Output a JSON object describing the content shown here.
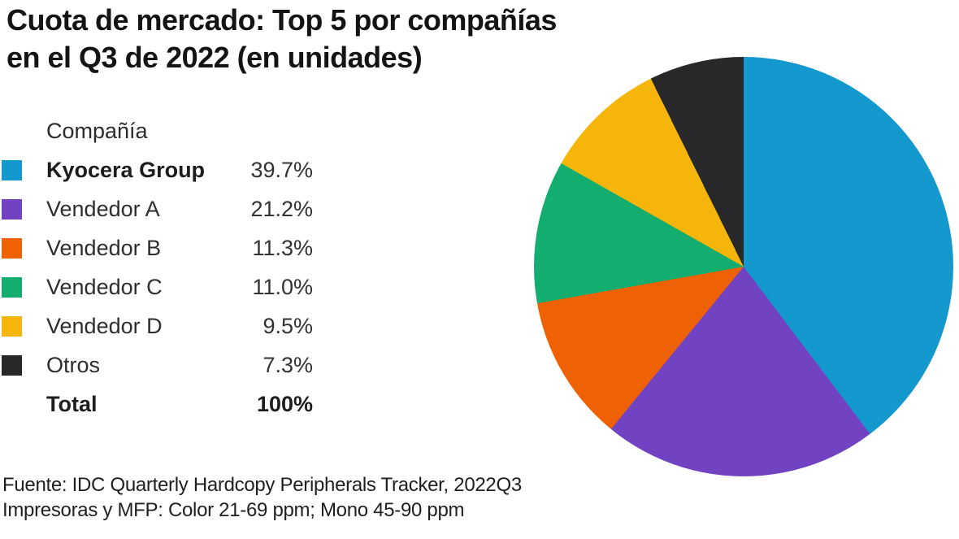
{
  "title": {
    "line1": "Cuota de mercado: Top 5 por compañías",
    "line2": "en el Q3 de 2022 (en unidades)"
  },
  "legend": {
    "header": "Compañía",
    "rows": [
      {
        "label": "Kyocera Group",
        "value": "39.7%",
        "color": "#1499CE"
      },
      {
        "label": "Vendedor A",
        "value": "21.2%",
        "color": "#7142C1"
      },
      {
        "label": "Vendedor B",
        "value": "11.3%",
        "color": "#EE6105"
      },
      {
        "label": "Vendedor C",
        "value": "11.0%",
        "color": "#12AD6F"
      },
      {
        "label": "Vendedor D",
        "value": "9.5%",
        "color": "#F5B50A"
      },
      {
        "label": "Otros",
        "value": "7.3%",
        "color": "#28282A"
      }
    ],
    "total": {
      "label": "Total",
      "value": "100%"
    }
  },
  "footer": {
    "line1": "Fuente: IDC Quarterly Hardcopy Peripherals Tracker, 2022Q3",
    "line2": "Impresoras y MFP: Color 21-69 ppm; Mono 45-90 ppm"
  },
  "chart_data": {
    "type": "pie",
    "title": "Cuota de mercado: Top 5 por compañías en el Q3 de 2022 (en unidades)",
    "categories": [
      "Kyocera Group",
      "Vendedor A",
      "Vendedor B",
      "Vendedor C",
      "Vendedor D",
      "Otros"
    ],
    "values": [
      39.7,
      21.2,
      11.3,
      11.0,
      9.5,
      7.3
    ],
    "colors": [
      "#1499CE",
      "#7142C1",
      "#EE6105",
      "#12AD6F",
      "#F5B50A",
      "#28282A"
    ],
    "value_labels": [
      "39.7%",
      "21.2%",
      "11.3%",
      "11.0%",
      "9.5%",
      "7.3%"
    ],
    "total_label": "Total",
    "total_value": "100%",
    "start_angle_deg": 0,
    "direction": "clockwise",
    "legend_position": "left",
    "legend_header": "Compañía",
    "source_note": "Fuente: IDC Quarterly Hardcopy Peripherals Tracker, 2022Q3",
    "scope_note": "Impresoras y MFP: Color 21-69 ppm; Mono 45-90 ppm"
  }
}
